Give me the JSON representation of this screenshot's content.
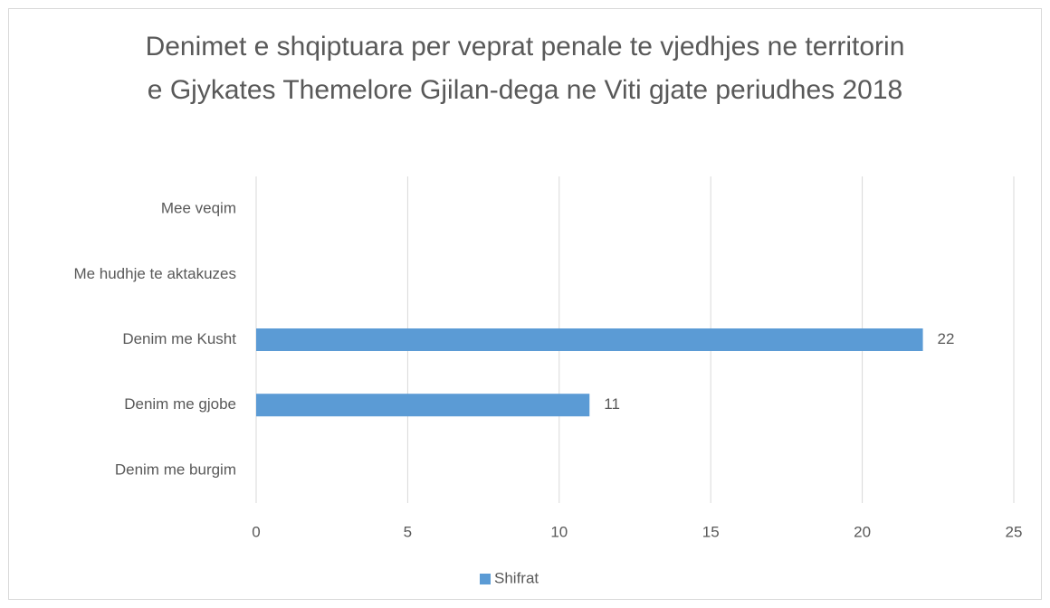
{
  "chart_data": {
    "type": "bar",
    "orientation": "horizontal",
    "title": "Denimet e shqiptuara per veprat penale te vjedhjes ne territorin e Gjykates Themelore Gjilan-dega ne Viti gjate periudhes 2018",
    "categories": [
      "Mee veqim",
      "Me hudhje te aktakuzes",
      "Denim me Kusht",
      "Denim me gjobe",
      "Denim me burgim"
    ],
    "series": [
      {
        "name": "Shifrat",
        "color": "#5b9bd5",
        "values": [
          null,
          null,
          22,
          11,
          null
        ]
      }
    ],
    "xlim": [
      0,
      25
    ],
    "xticks": [
      0,
      5,
      10,
      15,
      20,
      25
    ],
    "grid": true,
    "legend": "bottom"
  }
}
